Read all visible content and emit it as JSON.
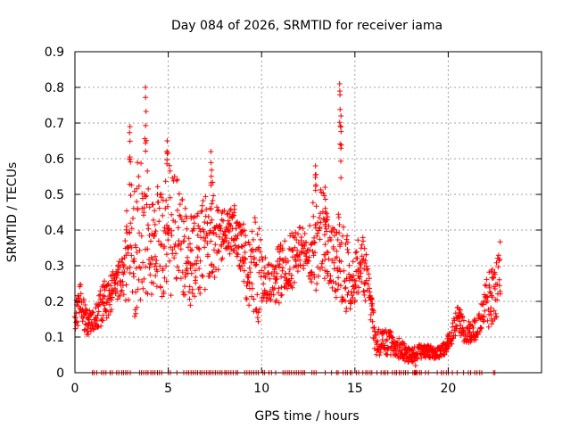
{
  "chart_data": {
    "type": "scatter",
    "title": "Day 084 of 2026, SRMTID for receiver iama",
    "xlabel": "GPS time / hours",
    "ylabel": "SRMTID / TECUs",
    "xlim": [
      0,
      25
    ],
    "ylim": [
      0,
      0.9
    ],
    "xticks": [
      0,
      5,
      10,
      15,
      20
    ],
    "yticks": [
      0,
      0.1,
      0.2,
      0.3,
      0.4,
      0.5,
      0.6,
      0.7,
      0.8,
      0.9
    ],
    "xtick_labels": [
      "0",
      "5",
      "10",
      "15",
      "20"
    ],
    "ytick_labels": [
      "0",
      "0.1",
      "0.2",
      "0.3",
      "0.4",
      "0.5",
      "0.6",
      "0.7",
      "0.8",
      "0.9"
    ],
    "grid": true,
    "marker": "plus",
    "color": "#ff0000",
    "series": [
      {
        "name": "SRMTID",
        "envelope": {
          "t": [
            0.0,
            0.3,
            0.6,
            1.0,
            1.4,
            1.8,
            2.2,
            2.6,
            2.9,
            3.3,
            3.7,
            4.1,
            4.5,
            4.9,
            5.3,
            5.7,
            6.1,
            6.5,
            6.9,
            7.3,
            7.7,
            8.1,
            8.5,
            8.9,
            9.3,
            9.7,
            10.1,
            10.5,
            10.9,
            11.3,
            11.7,
            12.1,
            12.5,
            12.9,
            13.3,
            13.7,
            14.1,
            14.5,
            14.9,
            15.3,
            15.7,
            16.1,
            16.5,
            16.9,
            17.3,
            17.7,
            18.1,
            18.5,
            18.9,
            19.3,
            19.7,
            20.1,
            20.5,
            20.9,
            21.3,
            21.7,
            22.1,
            22.5,
            22.8
          ],
          "lo": [
            0.12,
            0.14,
            0.1,
            0.12,
            0.12,
            0.16,
            0.2,
            0.22,
            0.18,
            0.14,
            0.22,
            0.22,
            0.18,
            0.24,
            0.2,
            0.22,
            0.16,
            0.22,
            0.22,
            0.26,
            0.26,
            0.34,
            0.32,
            0.28,
            0.14,
            0.12,
            0.2,
            0.2,
            0.18,
            0.22,
            0.24,
            0.3,
            0.26,
            0.22,
            0.26,
            0.24,
            0.2,
            0.16,
            0.18,
            0.2,
            0.2,
            0.04,
            0.05,
            0.05,
            0.04,
            0.03,
            0.03,
            0.04,
            0.04,
            0.04,
            0.04,
            0.06,
            0.12,
            0.08,
            0.08,
            0.1,
            0.12,
            0.14,
            0.2
          ],
          "hi": [
            0.2,
            0.25,
            0.18,
            0.17,
            0.24,
            0.28,
            0.3,
            0.33,
            0.62,
            0.58,
            0.68,
            0.47,
            0.54,
            0.6,
            0.58,
            0.52,
            0.44,
            0.44,
            0.5,
            0.55,
            0.46,
            0.46,
            0.48,
            0.44,
            0.38,
            0.46,
            0.35,
            0.3,
            0.36,
            0.38,
            0.4,
            0.42,
            0.38,
            0.55,
            0.52,
            0.4,
            0.45,
            0.4,
            0.33,
            0.43,
            0.3,
            0.13,
            0.12,
            0.12,
            0.1,
            0.08,
            0.07,
            0.08,
            0.08,
            0.07,
            0.08,
            0.12,
            0.19,
            0.15,
            0.14,
            0.18,
            0.28,
            0.3,
            0.38
          ]
        },
        "peaks": [
          {
            "t": 2.95,
            "y": 0.69
          },
          {
            "t": 3.8,
            "y": 0.8
          },
          {
            "t": 4.95,
            "y": 0.65
          },
          {
            "t": 7.3,
            "y": 0.62
          },
          {
            "t": 12.9,
            "y": 0.58
          },
          {
            "t": 13.4,
            "y": 0.52
          },
          {
            "t": 14.2,
            "y": 0.81
          },
          {
            "t": 14.25,
            "y": 0.72
          },
          {
            "t": 18.25,
            "y": 0.02
          }
        ],
        "zero_band": {
          "from": 0.9,
          "to": 22.6,
          "y": 0.0
        }
      }
    ]
  }
}
